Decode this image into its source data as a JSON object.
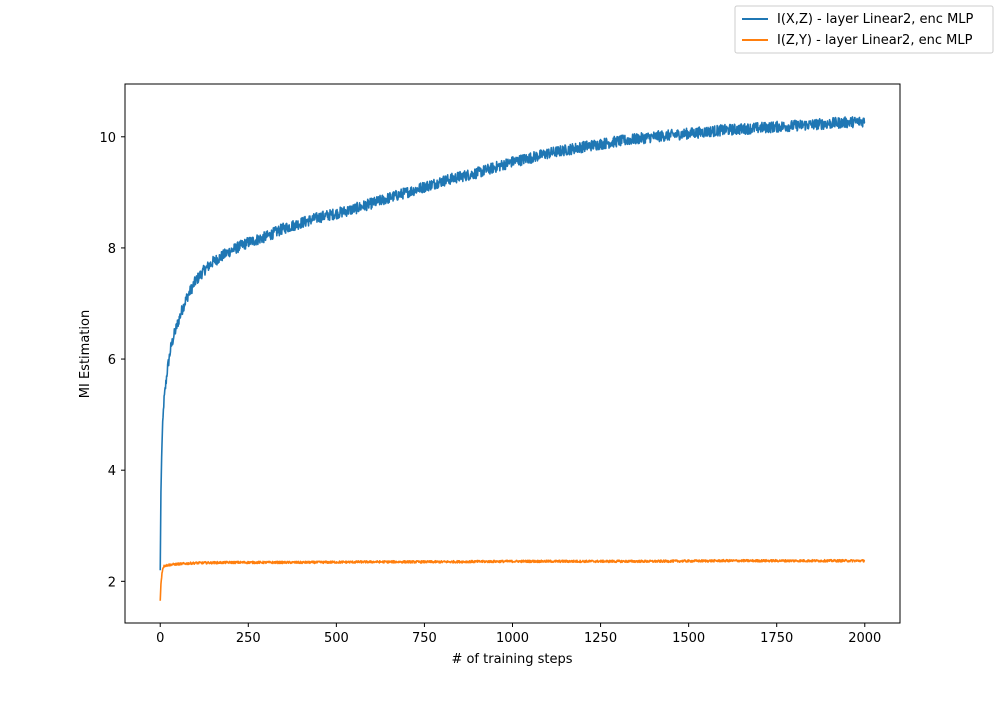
{
  "chart_data": {
    "type": "line",
    "title": "",
    "xlabel": "# of training steps",
    "ylabel": "MI Estimation",
    "xlim": [
      -100,
      2100
    ],
    "ylim": [
      1.25,
      10.95
    ],
    "x_ticks": [
      0,
      250,
      500,
      750,
      1000,
      1250,
      1500,
      1750,
      2000
    ],
    "y_ticks": [
      2,
      4,
      6,
      8,
      10
    ],
    "x_tick_labels": [
      "0",
      "250",
      "500",
      "750",
      "1000",
      "1250",
      "1500",
      "1750",
      "2000"
    ],
    "y_tick_labels": [
      "2",
      "4",
      "6",
      "8",
      "10"
    ],
    "grid": false,
    "legend_position": "upper-right-outside",
    "series": [
      {
        "name": "I(X,Z) - layer Linear2, enc MLP",
        "color": "#1f77b4",
        "x": [
          0,
          2,
          5,
          10,
          15,
          20,
          25,
          30,
          40,
          50,
          60,
          75,
          100,
          125,
          150,
          175,
          200,
          250,
          300,
          350,
          400,
          450,
          500,
          550,
          600,
          650,
          700,
          750,
          800,
          850,
          900,
          950,
          1000,
          1050,
          1100,
          1150,
          1200,
          1250,
          1300,
          1350,
          1400,
          1450,
          1500,
          1550,
          1600,
          1650,
          1700,
          1750,
          1800,
          1850,
          1900,
          1950,
          2000
        ],
        "values": [
          2.2,
          3.6,
          4.5,
          5.2,
          5.5,
          5.8,
          6.0,
          6.2,
          6.45,
          6.65,
          6.85,
          7.1,
          7.4,
          7.6,
          7.75,
          7.85,
          7.95,
          8.1,
          8.2,
          8.35,
          8.45,
          8.55,
          8.62,
          8.7,
          8.8,
          8.9,
          9.0,
          9.1,
          9.2,
          9.28,
          9.35,
          9.45,
          9.55,
          9.62,
          9.7,
          9.76,
          9.82,
          9.87,
          9.92,
          9.96,
          10.0,
          10.03,
          10.06,
          10.09,
          10.12,
          10.14,
          10.16,
          10.18,
          10.2,
          10.22,
          10.24,
          10.26,
          10.28
        ],
        "noise": 0.1
      },
      {
        "name": "I(Z,Y) - layer Linear2, enc MLP",
        "color": "#ff7f0e",
        "x": [
          0,
          2,
          5,
          8,
          12,
          20,
          30,
          50,
          100,
          200,
          400,
          600,
          800,
          1000,
          1200,
          1400,
          1600,
          1800,
          2000
        ],
        "values": [
          1.65,
          1.95,
          2.15,
          2.25,
          2.28,
          2.29,
          2.3,
          2.31,
          2.33,
          2.34,
          2.34,
          2.35,
          2.35,
          2.36,
          2.36,
          2.36,
          2.37,
          2.37,
          2.37
        ],
        "noise": 0.02
      }
    ]
  }
}
